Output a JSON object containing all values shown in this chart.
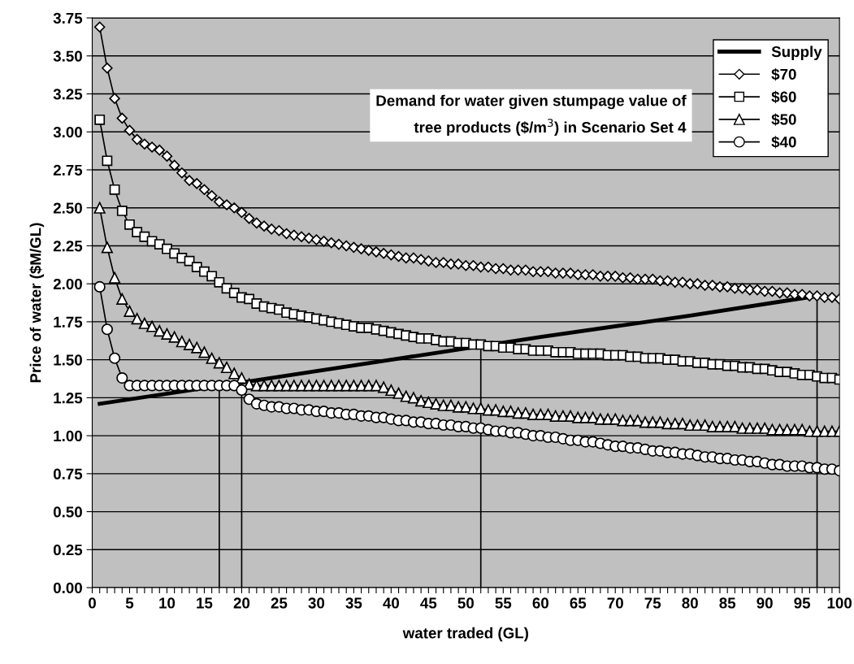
{
  "chart_data": {
    "type": "line",
    "xlabel": "water traded (GL)",
    "ylabel": "Price of water ($M/GL)",
    "annotations": [
      "Demand for water given stumpage value of\ntree products ($/m$^{3}$) in Scenario Set 4"
    ],
    "xlim": [
      0,
      100
    ],
    "ylim": [
      0,
      3.75
    ],
    "yticks": [
      {
        "value": 0,
        "label": "0.00"
      },
      {
        "value": 0.25,
        "label": "0.25"
      },
      {
        "value": 0.5,
        "label": "0.50"
      },
      {
        "value": 0.75,
        "label": "0.75"
      },
      {
        "value": 1,
        "label": "1.00"
      },
      {
        "value": 1.25,
        "label": "1.25"
      },
      {
        "value": 1.5,
        "label": "1.50"
      },
      {
        "value": 1.75,
        "label": "1.75"
      },
      {
        "value": 2,
        "label": "2.00"
      },
      {
        "value": 2.25,
        "label": "2.25"
      },
      {
        "value": 2.5,
        "label": "2.50"
      },
      {
        "value": 2.75,
        "label": "2.75"
      },
      {
        "value": 3,
        "label": "3.00"
      },
      {
        "value": 3.25,
        "label": "3.25"
      },
      {
        "value": 3.5,
        "label": "3.50"
      },
      {
        "value": 3.75,
        "label": "3.75"
      }
    ],
    "xticks": [
      0,
      {
        "value": 1,
        "label": null
      },
      {
        "value": 2,
        "label": null
      },
      {
        "value": 3,
        "label": null
      },
      {
        "value": 4,
        "label": null
      },
      5,
      {
        "value": 6,
        "label": null
      },
      {
        "value": 7,
        "label": null
      },
      {
        "value": 8,
        "label": null
      },
      {
        "value": 9,
        "label": null
      },
      10,
      {
        "value": 11,
        "label": null
      },
      {
        "value": 12,
        "label": null
      },
      {
        "value": 13,
        "label": null
      },
      {
        "value": 14,
        "label": null
      },
      15,
      {
        "value": 16,
        "label": null
      },
      {
        "value": 17,
        "label": null
      },
      {
        "value": 18,
        "label": null
      },
      {
        "value": 19,
        "label": null
      },
      20,
      {
        "value": 21,
        "label": null
      },
      {
        "value": 22,
        "label": null
      },
      {
        "value": 23,
        "label": null
      },
      {
        "value": 24,
        "label": null
      },
      25,
      {
        "value": 26,
        "label": null
      },
      {
        "value": 27,
        "label": null
      },
      {
        "value": 28,
        "label": null
      },
      {
        "value": 29,
        "label": null
      },
      30,
      {
        "value": 31,
        "label": null
      },
      {
        "value": 32,
        "label": null
      },
      {
        "value": 33,
        "label": null
      },
      {
        "value": 34,
        "label": null
      },
      35,
      {
        "value": 36,
        "label": null
      },
      {
        "value": 37,
        "label": null
      },
      {
        "value": 38,
        "label": null
      },
      {
        "value": 39,
        "label": null
      },
      40,
      {
        "value": 41,
        "label": null
      },
      {
        "value": 42,
        "label": null
      },
      {
        "value": 43,
        "label": null
      },
      {
        "value": 44,
        "label": null
      },
      45,
      {
        "value": 46,
        "label": null
      },
      {
        "value": 47,
        "label": null
      },
      {
        "value": 48,
        "label": null
      },
      {
        "value": 49,
        "label": null
      },
      50,
      {
        "value": 51,
        "label": null
      },
      {
        "value": 52,
        "label": null
      },
      {
        "value": 53,
        "label": null
      },
      {
        "value": 54,
        "label": null
      },
      55,
      {
        "value": 56,
        "label": null
      },
      {
        "value": 57,
        "label": null
      },
      {
        "value": 58,
        "label": null
      },
      {
        "value": 59,
        "label": null
      },
      60,
      {
        "value": 61,
        "label": null
      },
      {
        "value": 62,
        "label": null
      },
      {
        "value": 63,
        "label": null
      },
      {
        "value": 64,
        "label": null
      },
      65,
      {
        "value": 66,
        "label": null
      },
      {
        "value": 67,
        "label": null
      },
      {
        "value": 68,
        "label": null
      },
      {
        "value": 69,
        "label": null
      },
      70,
      {
        "value": 71,
        "label": null
      },
      {
        "value": 72,
        "label": null
      },
      {
        "value": 73,
        "label": null
      },
      {
        "value": 74,
        "label": null
      },
      75,
      {
        "value": 76,
        "label": null
      },
      {
        "value": 77,
        "label": null
      },
      {
        "value": 78,
        "label": null
      },
      {
        "value": 79,
        "label": null
      },
      80,
      {
        "value": 81,
        "label": null
      },
      {
        "value": 82,
        "label": null
      },
      {
        "value": 83,
        "label": null
      },
      {
        "value": 84,
        "label": null
      },
      85,
      {
        "value": 86,
        "label": null
      },
      {
        "value": 87,
        "label": null
      },
      {
        "value": 88,
        "label": null
      },
      {
        "value": 89,
        "label": null
      },
      90,
      {
        "value": 91,
        "label": null
      },
      {
        "value": 92,
        "label": null
      },
      {
        "value": 93,
        "label": null
      },
      {
        "value": 94,
        "label": null
      },
      95,
      {
        "value": 96,
        "label": null
      },
      {
        "value": 97,
        "label": null
      },
      {
        "value": 98,
        "label": null
      },
      {
        "value": 99,
        "label": null
      },
      100
    ],
    "grid": "y",
    "legend": "top right",
    "x": [
      1,
      2,
      3,
      4,
      5,
      6,
      7,
      8,
      9,
      10,
      11,
      12,
      13,
      14,
      15,
      16,
      17,
      18,
      19,
      20,
      21,
      22,
      23,
      24,
      25,
      26,
      27,
      28,
      29,
      30,
      31,
      32,
      33,
      34,
      35,
      36,
      37,
      38,
      39,
      40,
      41,
      42,
      43,
      44,
      45,
      46,
      47,
      48,
      49,
      50,
      51,
      52,
      53,
      54,
      55,
      56,
      57,
      58,
      59,
      60,
      61,
      62,
      63,
      64,
      65,
      66,
      67,
      68,
      69,
      70,
      71,
      72,
      73,
      74,
      75,
      76,
      77,
      78,
      79,
      80,
      81,
      82,
      83,
      84,
      85,
      86,
      87,
      88,
      89,
      90,
      91,
      92,
      93,
      94,
      95,
      96,
      97,
      98,
      99,
      100
    ],
    "series": [
      {
        "name": "Supply",
        "color": "#000000",
        "marker": "none",
        "x": [
          1,
          20,
          40,
          52,
          60,
          80,
          97
        ],
        "values": [
          1.21,
          1.35,
          1.5,
          1.59,
          1.65,
          1.79,
          1.92
        ]
      },
      {
        "name": "$70",
        "color": "#000000",
        "marker": "diamond",
        "values": [
          3.69,
          3.42,
          3.22,
          3.09,
          3.01,
          2.95,
          2.92,
          2.9,
          2.88,
          2.84,
          2.78,
          2.73,
          2.68,
          2.66,
          2.62,
          2.58,
          2.54,
          2.52,
          2.5,
          2.47,
          2.43,
          2.4,
          2.38,
          2.36,
          2.35,
          2.33,
          2.32,
          2.31,
          2.3,
          2.29,
          2.28,
          2.27,
          2.26,
          2.25,
          2.24,
          2.23,
          2.22,
          2.21,
          2.2,
          2.19,
          2.18,
          2.17,
          2.17,
          2.16,
          2.15,
          2.14,
          2.14,
          2.13,
          2.13,
          2.12,
          2.12,
          2.11,
          2.11,
          2.1,
          2.1,
          2.09,
          2.09,
          2.09,
          2.08,
          2.08,
          2.08,
          2.07,
          2.07,
          2.07,
          2.06,
          2.06,
          2.06,
          2.05,
          2.05,
          2.05,
          2.04,
          2.04,
          2.03,
          2.03,
          2.03,
          2.02,
          2.02,
          2.01,
          2.01,
          2.0,
          2.0,
          1.99,
          1.99,
          1.98,
          1.98,
          1.97,
          1.97,
          1.96,
          1.96,
          1.95,
          1.95,
          1.94,
          1.94,
          1.93,
          1.93,
          1.92,
          1.92,
          1.91,
          1.91,
          1.9
        ]
      },
      {
        "name": "$60",
        "color": "#000000",
        "marker": "square",
        "values": [
          3.08,
          2.81,
          2.62,
          2.48,
          2.39,
          2.34,
          2.31,
          2.28,
          2.26,
          2.23,
          2.2,
          2.17,
          2.15,
          2.11,
          2.08,
          2.05,
          2.01,
          1.97,
          1.94,
          1.91,
          1.9,
          1.87,
          1.85,
          1.84,
          1.83,
          1.81,
          1.8,
          1.79,
          1.78,
          1.77,
          1.76,
          1.75,
          1.74,
          1.73,
          1.72,
          1.71,
          1.71,
          1.7,
          1.69,
          1.68,
          1.67,
          1.66,
          1.65,
          1.64,
          1.64,
          1.63,
          1.62,
          1.62,
          1.61,
          1.61,
          1.6,
          1.6,
          1.59,
          1.59,
          1.58,
          1.58,
          1.57,
          1.57,
          1.56,
          1.56,
          1.56,
          1.55,
          1.55,
          1.55,
          1.54,
          1.54,
          1.54,
          1.54,
          1.53,
          1.53,
          1.53,
          1.52,
          1.52,
          1.51,
          1.51,
          1.51,
          1.5,
          1.5,
          1.49,
          1.49,
          1.48,
          1.48,
          1.47,
          1.47,
          1.46,
          1.46,
          1.45,
          1.45,
          1.44,
          1.44,
          1.43,
          1.42,
          1.42,
          1.41,
          1.4,
          1.4,
          1.39,
          1.38,
          1.38,
          1.37
        ]
      },
      {
        "name": "$50",
        "color": "#000000",
        "marker": "triangle",
        "values": [
          2.5,
          2.24,
          2.04,
          1.9,
          1.82,
          1.77,
          1.74,
          1.72,
          1.69,
          1.67,
          1.65,
          1.62,
          1.6,
          1.58,
          1.55,
          1.51,
          1.48,
          1.45,
          1.41,
          1.38,
          1.34,
          1.33,
          1.33,
          1.33,
          1.33,
          1.33,
          1.33,
          1.33,
          1.33,
          1.33,
          1.33,
          1.33,
          1.33,
          1.33,
          1.33,
          1.33,
          1.33,
          1.33,
          1.32,
          1.3,
          1.28,
          1.26,
          1.25,
          1.23,
          1.22,
          1.21,
          1.2,
          1.2,
          1.19,
          1.19,
          1.18,
          1.18,
          1.17,
          1.17,
          1.16,
          1.16,
          1.15,
          1.15,
          1.14,
          1.14,
          1.14,
          1.13,
          1.13,
          1.13,
          1.12,
          1.12,
          1.12,
          1.11,
          1.11,
          1.11,
          1.1,
          1.1,
          1.1,
          1.09,
          1.09,
          1.09,
          1.08,
          1.08,
          1.08,
          1.07,
          1.07,
          1.07,
          1.06,
          1.06,
          1.06,
          1.06,
          1.05,
          1.05,
          1.05,
          1.05,
          1.04,
          1.04,
          1.04,
          1.04,
          1.04,
          1.03,
          1.03,
          1.03,
          1.03,
          1.03
        ]
      },
      {
        "name": "$40",
        "color": "#000000",
        "marker": "circle",
        "values": [
          1.98,
          1.7,
          1.51,
          1.38,
          1.33,
          1.33,
          1.33,
          1.33,
          1.33,
          1.33,
          1.33,
          1.33,
          1.33,
          1.33,
          1.33,
          1.33,
          1.33,
          1.33,
          1.33,
          1.3,
          1.24,
          1.21,
          1.2,
          1.19,
          1.19,
          1.18,
          1.18,
          1.17,
          1.17,
          1.16,
          1.16,
          1.15,
          1.15,
          1.14,
          1.14,
          1.13,
          1.13,
          1.12,
          1.12,
          1.11,
          1.1,
          1.1,
          1.09,
          1.09,
          1.08,
          1.08,
          1.07,
          1.07,
          1.06,
          1.06,
          1.05,
          1.05,
          1.04,
          1.03,
          1.03,
          1.02,
          1.02,
          1.01,
          1.0,
          1.0,
          0.99,
          0.99,
          0.98,
          0.97,
          0.97,
          0.96,
          0.96,
          0.95,
          0.94,
          0.93,
          0.93,
          0.92,
          0.92,
          0.91,
          0.9,
          0.9,
          0.89,
          0.89,
          0.88,
          0.88,
          0.87,
          0.86,
          0.86,
          0.85,
          0.85,
          0.84,
          0.84,
          0.83,
          0.83,
          0.82,
          0.81,
          0.81,
          0.8,
          0.8,
          0.8,
          0.79,
          0.79,
          0.78,
          0.78,
          0.77
        ]
      },
      {
        "color": "#000000",
        "marker": "none",
        "x": [
          17,
          17
        ],
        "values": [
          0,
          1.33
        ]
      },
      {
        "color": "#000000",
        "marker": "none",
        "x": [
          20,
          20
        ],
        "values": [
          0,
          1.36
        ]
      },
      {
        "color": "#000000",
        "marker": "none",
        "x": [
          52,
          52
        ],
        "values": [
          0,
          1.6
        ]
      },
      {
        "color": "#000000",
        "marker": "none",
        "x": [
          97,
          97
        ],
        "values": [
          0,
          1.92
        ]
      }
    ]
  }
}
